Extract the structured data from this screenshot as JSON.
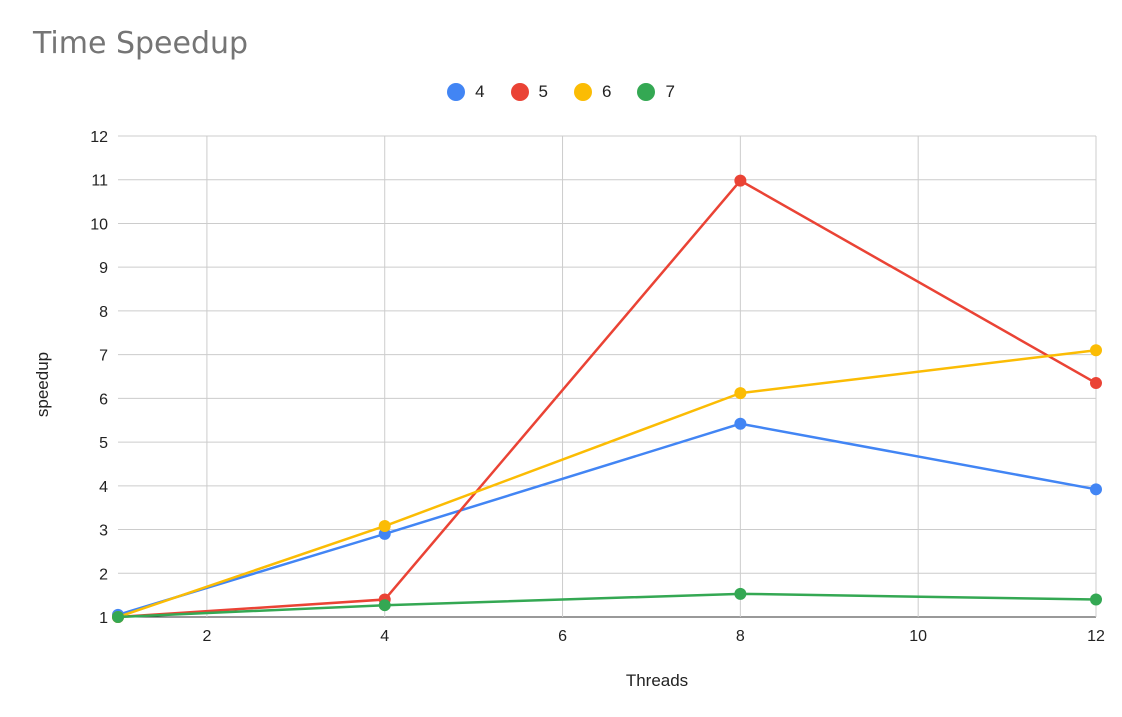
{
  "chart_data": {
    "type": "line",
    "title": "Time Speedup",
    "xlabel": "Threads",
    "ylabel": "speedup",
    "xlim": [
      1,
      12
    ],
    "ylim": [
      1,
      12
    ],
    "x_ticks": [
      2,
      4,
      6,
      8,
      10,
      12
    ],
    "y_ticks": [
      1,
      2,
      3,
      4,
      5,
      6,
      7,
      8,
      9,
      10,
      11,
      12
    ],
    "grid": true,
    "legend_position": "top",
    "x": [
      1,
      4,
      8,
      12
    ],
    "series": [
      {
        "name": "4",
        "color": "#4285F4",
        "values": [
          1.05,
          2.9,
          5.42,
          3.92
        ]
      },
      {
        "name": "5",
        "color": "#EA4335",
        "values": [
          1.0,
          1.4,
          10.98,
          6.35
        ]
      },
      {
        "name": "6",
        "color": "#FBBC04",
        "values": [
          1.0,
          3.08,
          6.12,
          7.1
        ]
      },
      {
        "name": "7",
        "color": "#34A853",
        "values": [
          1.0,
          1.27,
          1.53,
          1.4
        ]
      }
    ]
  }
}
